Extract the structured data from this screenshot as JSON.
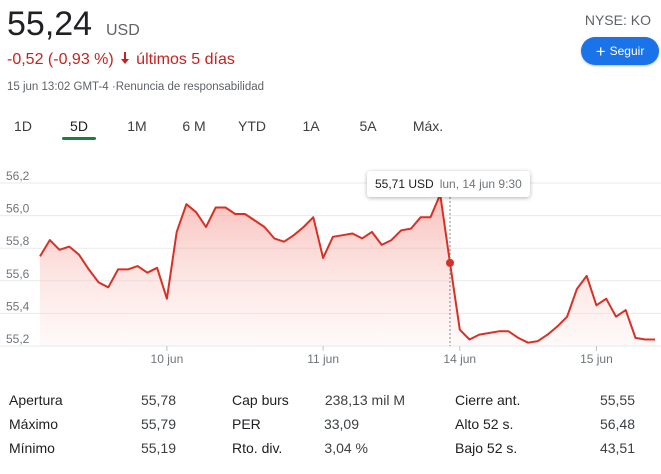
{
  "quote": {
    "price": "55,24",
    "currency": "USD",
    "change": "-0,52 (-0,93 %)",
    "period": "últimos 5 días",
    "timestamp": "15 jun 13:02 GMT-4",
    "disclaimer": "Renuncia de responsabilidad",
    "ticker": "NYSE: KO",
    "follow_label": "Seguir"
  },
  "ranges": [
    {
      "label": "1D",
      "active": false
    },
    {
      "label": "5D",
      "active": true
    },
    {
      "label": "1M",
      "active": false
    },
    {
      "label": "6 M",
      "active": false
    },
    {
      "label": "YTD",
      "active": false
    },
    {
      "label": "1A",
      "active": false
    },
    {
      "label": "5A",
      "active": false
    },
    {
      "label": "Máx.",
      "active": false
    }
  ],
  "tooltip": {
    "value": "55,71 USD",
    "date": "lun, 14 jun 9:30"
  },
  "colors": {
    "down": "#c5221f",
    "line": "#d93025",
    "accent": "#1a73e8",
    "active_tab": "#188038"
  },
  "chart_data": {
    "type": "area",
    "ylim": [
      55.2,
      56.2
    ],
    "yticks": [
      "55,2",
      "55,4",
      "55,6",
      "55,8",
      "56,0",
      "56,2"
    ],
    "xticks": [
      "10 jun",
      "11 jun",
      "14 jun",
      "15 jun"
    ],
    "grid": true,
    "series": [
      {
        "values": [
          55.75,
          55.85,
          55.79,
          55.81,
          55.76,
          55.67,
          55.59,
          55.56,
          55.67,
          55.67,
          55.69,
          55.65,
          55.68,
          55.49,
          55.9,
          56.07,
          56.02,
          55.93,
          56.05,
          56.05,
          56.01,
          56.01,
          55.97,
          55.93,
          55.86,
          55.84,
          55.88,
          55.93,
          55.99,
          55.74,
          55.87,
          55.88,
          55.89,
          55.86,
          55.9,
          55.82,
          55.85,
          55.91,
          55.92,
          55.99,
          55.99,
          56.13,
          55.71,
          55.3,
          55.24,
          55.27,
          55.28,
          55.29,
          55.29,
          55.25,
          55.22,
          55.23,
          55.27,
          55.32,
          55.38,
          55.55,
          55.63,
          55.45,
          55.49,
          55.38,
          55.42,
          55.25,
          55.24,
          55.24
        ]
      }
    ],
    "highlight": {
      "index": 42,
      "value": 55.71
    }
  },
  "stats": [
    {
      "label": "Apertura",
      "value": "55,78"
    },
    {
      "label": "Máximo",
      "value": "55,79"
    },
    {
      "label": "Mínimo",
      "value": "55,19"
    },
    {
      "label": "Cap burs",
      "value": "238,13 mil M"
    },
    {
      "label": "PER",
      "value": "33,09"
    },
    {
      "label": "Rto. div.",
      "value": "3,04 %"
    },
    {
      "label": "Cierre ant.",
      "value": "55,55"
    },
    {
      "label": "Alto 52 s.",
      "value": "56,48"
    },
    {
      "label": "Bajo 52 s.",
      "value": "43,51"
    }
  ]
}
